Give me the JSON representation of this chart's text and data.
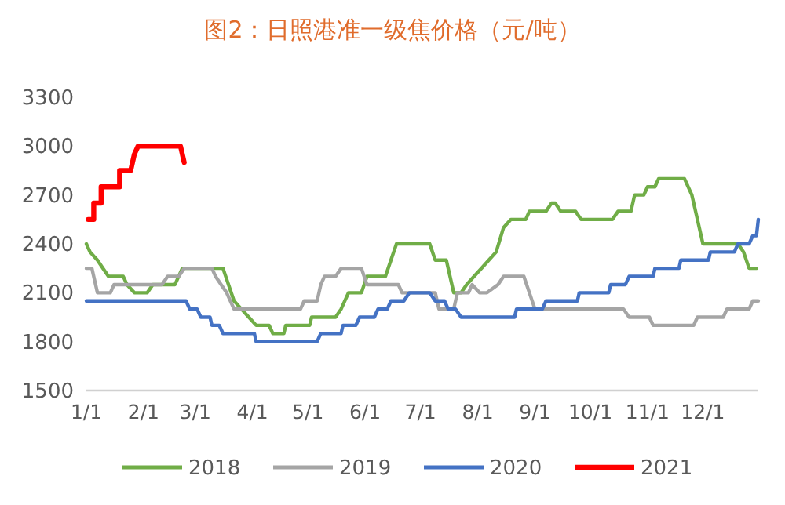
{
  "chart_data": {
    "type": "line",
    "title": "图2：日照港准一级焦价格（元/吨）",
    "xlim": [
      "--01-01",
      "--12-31"
    ],
    "xticks": [
      {
        "value": "--01-01",
        "label": "1/1"
      },
      {
        "value": "--02-01",
        "label": "2/1"
      },
      {
        "value": "--03-01",
        "label": "3/1"
      },
      {
        "value": "--04-01",
        "label": "4/1"
      },
      {
        "value": "--05-01",
        "label": "5/1"
      },
      {
        "value": "--06-01",
        "label": "6/1"
      },
      {
        "value": "--07-01",
        "label": "7/1"
      },
      {
        "value": "--08-01",
        "label": "8/1"
      },
      {
        "value": "--09-01",
        "label": "9/1"
      },
      {
        "value": "--10-01",
        "label": "10/1"
      },
      {
        "value": "--11-01",
        "label": "11/1"
      },
      {
        "value": "--12-01",
        "label": "12/1"
      }
    ],
    "ylim": [
      1500,
      3300
    ],
    "yticks": [
      1500,
      1800,
      2100,
      2400,
      2700,
      3000,
      3300
    ],
    "grid": false,
    "legend": "bottom",
    "marker": "none",
    "line_style": "solid",
    "series": [
      {
        "name": "2018",
        "color": "#70ad47",
        "x": [
          "--01-01",
          "--01-03",
          "--01-07",
          "--01-10",
          "--01-13",
          "--01-21",
          "--01-23",
          "--01-27",
          "--02-03",
          "--02-06",
          "--02-18",
          "--02-22",
          "--03-16",
          "--03-19",
          "--03-22",
          "--03-26",
          "--03-30",
          "--04-03",
          "--04-10",
          "--04-12",
          "--04-18",
          "--04-19",
          "--05-02",
          "--05-03",
          "--05-16",
          "--05-19",
          "--05-23",
          "--05-30",
          "--06-02",
          "--06-12",
          "--06-15",
          "--06-18",
          "--07-06",
          "--07-09",
          "--07-15",
          "--07-19",
          "--07-23",
          "--07-26",
          "--07-30",
          "--08-03",
          "--08-07",
          "--08-11",
          "--08-15",
          "--08-19",
          "--08-27",
          "--08-29",
          "--09-07",
          "--09-10",
          "--09-12",
          "--09-15",
          "--09-23",
          "--09-26",
          "--10-13",
          "--10-16",
          "--10-23",
          "--10-25",
          "--10-30",
          "--11-01",
          "--11-05",
          "--11-07",
          "--11-21",
          "--11-25",
          "--11-28",
          "--12-01",
          "--12-20",
          "--12-23",
          "--12-26",
          "--12-30"
        ],
        "values": [
          2400,
          2350,
          2300,
          2250,
          2200,
          2200,
          2150,
          2100,
          2100,
          2150,
          2150,
          2250,
          2250,
          2150,
          2050,
          2000,
          1950,
          1900,
          1900,
          1850,
          1850,
          1900,
          1900,
          1950,
          1950,
          2000,
          2100,
          2100,
          2200,
          2200,
          2300,
          2400,
          2400,
          2300,
          2300,
          2100,
          2100,
          2150,
          2200,
          2250,
          2300,
          2350,
          2500,
          2550,
          2550,
          2600,
          2600,
          2650,
          2650,
          2600,
          2600,
          2550,
          2550,
          2600,
          2600,
          2700,
          2700,
          2750,
          2750,
          2800,
          2800,
          2700,
          2550,
          2400,
          2400,
          2350,
          2250,
          2250
        ]
      },
      {
        "name": "2019",
        "color": "#a5a5a5",
        "x": [
          "--01-01",
          "--01-04",
          "--01-07",
          "--01-14",
          "--01-16",
          "--02-11",
          "--02-14",
          "--02-20",
          "--02-23",
          "--03-10",
          "--03-12",
          "--03-15",
          "--03-18",
          "--03-22",
          "--04-27",
          "--04-29",
          "--05-06",
          "--05-08",
          "--05-10",
          "--05-16",
          "--05-19",
          "--05-30",
          "--06-02",
          "--06-19",
          "--06-21",
          "--07-09",
          "--07-11",
          "--07-19",
          "--07-21",
          "--07-27",
          "--07-29",
          "--08-02",
          "--08-06",
          "--08-12",
          "--08-15",
          "--08-26",
          "--08-29",
          "--09-01",
          "--10-19",
          "--10-22",
          "--11-02",
          "--11-04",
          "--11-26",
          "--11-28",
          "--12-12",
          "--12-14",
          "--12-26",
          "--12-28",
          "--12-31"
        ],
        "values": [
          2250,
          2250,
          2100,
          2100,
          2150,
          2150,
          2200,
          2200,
          2250,
          2250,
          2200,
          2150,
          2100,
          2000,
          2000,
          2050,
          2050,
          2150,
          2200,
          2200,
          2250,
          2250,
          2150,
          2150,
          2100,
          2100,
          2000,
          2000,
          2100,
          2100,
          2150,
          2100,
          2100,
          2150,
          2200,
          2200,
          2100,
          2000,
          2000,
          1950,
          1950,
          1900,
          1900,
          1950,
          1950,
          2000,
          2000,
          2050,
          2050
        ]
      },
      {
        "name": "2020",
        "color": "#4472c4",
        "x": [
          "--01-01",
          "--02-24",
          "--02-26",
          "--03-02",
          "--03-04",
          "--03-09",
          "--03-10",
          "--03-14",
          "--03-16",
          "--04-02",
          "--04-03",
          "--05-06",
          "--05-08",
          "--05-19",
          "--05-20",
          "--05-27",
          "--05-29",
          "--06-06",
          "--06-08",
          "--06-13",
          "--06-15",
          "--06-22",
          "--06-25",
          "--07-06",
          "--07-09",
          "--07-14",
          "--07-16",
          "--07-20",
          "--07-23",
          "--08-21",
          "--08-22",
          "--09-05",
          "--09-07",
          "--09-24",
          "--09-25",
          "--10-11",
          "--10-12",
          "--10-20",
          "--10-22",
          "--11-04",
          "--11-05",
          "--11-18",
          "--11-19",
          "--12-04",
          "--12-05",
          "--12-18",
          "--12-20",
          "--12-26",
          "--12-28",
          "--12-30",
          "--12-31"
        ],
        "values": [
          2050,
          2050,
          2000,
          2000,
          1950,
          1950,
          1900,
          1900,
          1850,
          1850,
          1800,
          1800,
          1850,
          1850,
          1900,
          1900,
          1950,
          1950,
          2000,
          2000,
          2050,
          2050,
          2100,
          2100,
          2050,
          2050,
          2000,
          2000,
          1950,
          1950,
          2000,
          2000,
          2050,
          2050,
          2100,
          2100,
          2150,
          2150,
          2200,
          2200,
          2250,
          2250,
          2300,
          2300,
          2350,
          2350,
          2400,
          2400,
          2450,
          2450,
          2550
        ]
      },
      {
        "name": "2021",
        "color": "#ff0000",
        "x": [
          "--01-02",
          "--01-05",
          "--01-05",
          "--01-09",
          "--01-09",
          "--01-19",
          "--01-19",
          "--01-25",
          "--01-27",
          "--01-29",
          "--02-21",
          "--02-23"
        ],
        "values": [
          2550,
          2550,
          2650,
          2650,
          2750,
          2750,
          2850,
          2850,
          2950,
          3000,
          3000,
          2900
        ]
      }
    ]
  }
}
